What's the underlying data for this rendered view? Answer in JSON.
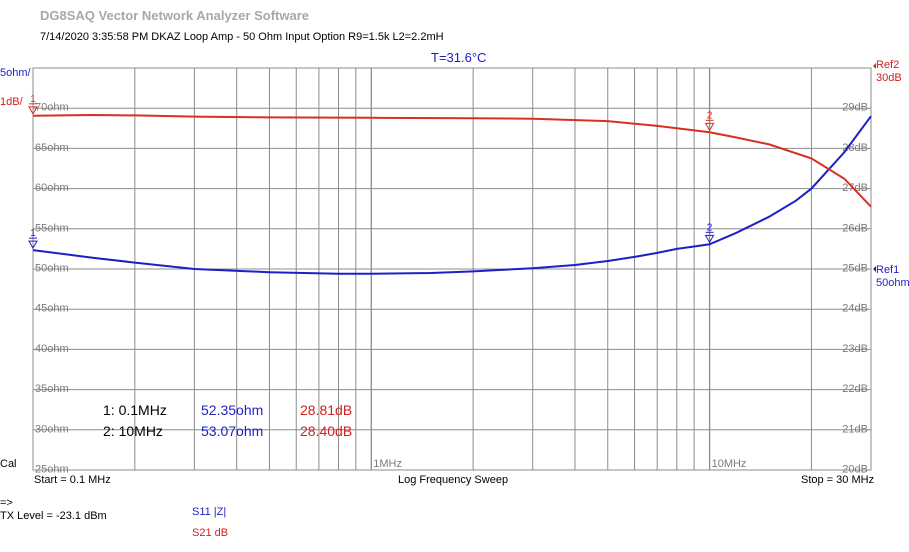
{
  "app_title": "DG8SAQ Vector Network Analyzer Software",
  "subtitle": "7/14/2020   3:35:58 PM    DKAZ Loop Amp - 50 Ohm Input Option R9=1.5k L2=2.2mH",
  "temperature": "T=31.6°C",
  "left_top_label": "5ohm/",
  "left_second_label": "1dB/",
  "ref2_label": "Ref2",
  "ref2_value": "30dB",
  "ref1_label": "Ref1",
  "ref1_value": "50ohm",
  "cal_label": "Cal",
  "start_label": "Start = 0.1 MHz",
  "sweep_label": "Log Frequency Sweep",
  "stop_label": "Stop = 30 MHz",
  "arrow_label": "=>",
  "tx_level": "TX Level = -23.1 dBm",
  "colors": {
    "s11": "#1f1fc8",
    "s21": "#d83020",
    "grid": "#8c8c8c"
  },
  "markers": [
    {
      "id": "1",
      "freq": "0.1MHz",
      "s11": "52.35ohm",
      "s21": "28.81dB"
    },
    {
      "id": "2",
      "freq": "10MHz",
      "s11": "53.07ohm",
      "s21": "28.40dB"
    }
  ],
  "legend": [
    {
      "name": "S11  |Z|",
      "color": "#1f1fc8"
    },
    {
      "name": "S21  dB",
      "color": "#d02020"
    }
  ],
  "chart_data": {
    "type": "line",
    "x_scale": "log",
    "xlim": [
      0.1,
      30
    ],
    "x_tick_labels": [
      "1MHz",
      "10MHz"
    ],
    "y_left": {
      "tick_labels": [
        "25ohm",
        "30ohm",
        "35ohm",
        "40ohm",
        "45ohm",
        "50ohm",
        "55ohm",
        "60ohm",
        "65ohm",
        "70ohm"
      ],
      "ylim": [
        25,
        75
      ]
    },
    "y_right": {
      "tick_labels": [
        "20dB",
        "21dB",
        "22dB",
        "23dB",
        "24dB",
        "25dB",
        "26dB",
        "27dB",
        "28dB",
        "29dB"
      ],
      "ylim": [
        20,
        30
      ]
    },
    "grid": true,
    "series": [
      {
        "name": "S11  |Z|",
        "axis": "left",
        "x": [
          0.1,
          0.15,
          0.2,
          0.3,
          0.5,
          0.8,
          1,
          1.5,
          2,
          3,
          4,
          5,
          6,
          7,
          8,
          9,
          10,
          12,
          15,
          18,
          20,
          25,
          30
        ],
        "y": [
          52.35,
          51.4,
          50.8,
          50.0,
          49.6,
          49.4,
          49.4,
          49.5,
          49.7,
          50.1,
          50.5,
          51.0,
          51.5,
          52.0,
          52.5,
          52.8,
          53.07,
          54.5,
          56.5,
          58.5,
          60.0,
          64.5,
          69.0
        ]
      },
      {
        "name": "S21  dB",
        "axis": "right",
        "x": [
          0.1,
          0.15,
          0.2,
          0.3,
          0.5,
          1,
          2,
          3,
          5,
          7,
          8,
          10,
          12,
          15,
          20,
          25,
          30
        ],
        "y": [
          28.81,
          28.83,
          28.82,
          28.79,
          28.77,
          28.76,
          28.75,
          28.74,
          28.68,
          28.56,
          28.5,
          28.4,
          28.27,
          28.1,
          27.75,
          27.25,
          26.55
        ]
      }
    ]
  }
}
